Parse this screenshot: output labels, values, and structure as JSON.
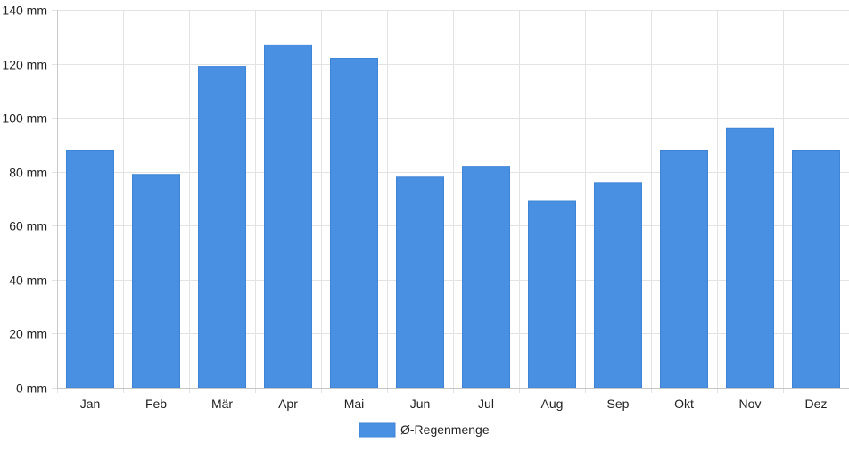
{
  "chart_data": {
    "type": "bar",
    "categories": [
      "Jan",
      "Feb",
      "Mär",
      "Apr",
      "Mai",
      "Jun",
      "Jul",
      "Aug",
      "Sep",
      "Okt",
      "Nov",
      "Dez"
    ],
    "series": [
      {
        "name": "Ø-Regenmenge",
        "values": [
          88,
          79,
          119,
          127,
          122,
          78,
          82,
          69,
          76,
          88,
          96,
          88
        ],
        "color": "#4a90e2"
      }
    ],
    "y_unit": "mm",
    "ylim": [
      0,
      140
    ],
    "y_ticks": [
      0,
      20,
      40,
      60,
      80,
      100,
      120,
      140
    ],
    "y_tick_labels": [
      "0 mm",
      "20 mm",
      "40 mm",
      "60 mm",
      "80 mm",
      "100 mm",
      "120 mm",
      "140 mm"
    ],
    "grid": true,
    "legend": "bottom-center",
    "title": "",
    "xlabel": "",
    "ylabel": ""
  }
}
